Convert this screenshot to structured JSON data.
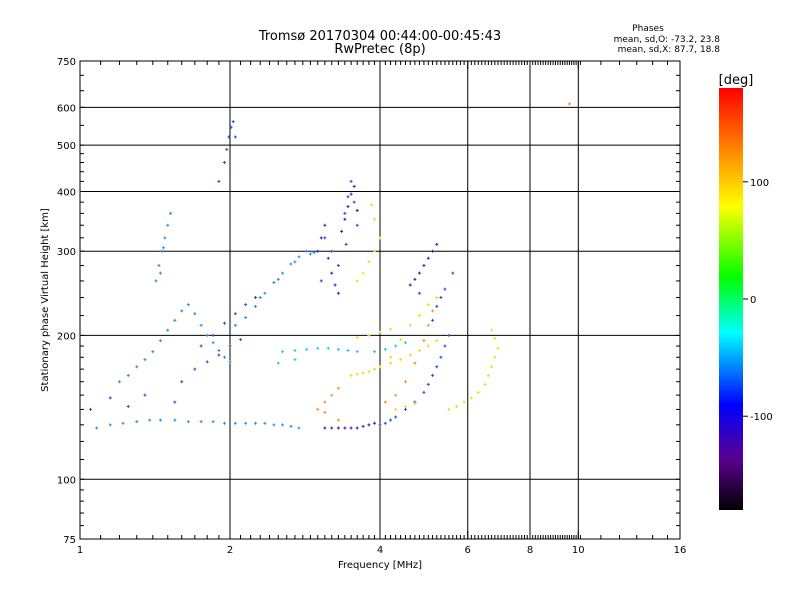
{
  "header": {
    "title": "Tromsø 20170304 00:44:00-00:45:43",
    "subtitle": "RwPretec (8p)",
    "phases_label": "Phases",
    "stat_o": "mean, sd,O: -73.2, 23.8",
    "stat_x": "mean, sd,X:  87.7, 18.8"
  },
  "chart_data": {
    "type": "scatter",
    "title": "Tromsø 20170304 00:44:00-00:45:43",
    "subtitle": "RwPretec (8p)",
    "xlabel": "Frequency [MHz]",
    "ylabel": "Stationary phase Virtual Height [km]",
    "x_scale": "log",
    "y_scale": "log",
    "xlim": [
      1,
      16
    ],
    "ylim": [
      75,
      750
    ],
    "x_ticks": [
      1,
      2,
      4,
      6,
      8,
      10,
      16
    ],
    "y_ticks": [
      75,
      100,
      200,
      300,
      400,
      500,
      600,
      750
    ],
    "grid": true,
    "colorbar": {
      "label": "[deg]",
      "ticks": [
        100,
        0,
        -100
      ],
      "range": [
        -180,
        180
      ],
      "colors": [
        "#000000",
        "#5a0090",
        "#0000ff",
        "#00ffff",
        "#00ff00",
        "#ffff00",
        "#ff8000",
        "#ff0000"
      ]
    },
    "series": [
      {
        "color": "#2a8fdc",
        "points": [
          [
            1.08,
            128
          ],
          [
            1.15,
            130
          ],
          [
            1.22,
            131
          ],
          [
            1.3,
            132
          ],
          [
            1.38,
            133
          ],
          [
            1.45,
            133
          ],
          [
            1.55,
            133
          ],
          [
            1.65,
            132
          ],
          [
            1.75,
            132
          ],
          [
            1.85,
            132
          ],
          [
            1.95,
            131
          ],
          [
            2.05,
            131
          ],
          [
            2.15,
            131
          ],
          [
            2.25,
            131
          ],
          [
            2.35,
            131
          ],
          [
            2.45,
            130
          ],
          [
            2.55,
            130
          ],
          [
            2.65,
            129
          ],
          [
            2.75,
            128
          ],
          [
            1.2,
            160
          ],
          [
            1.25,
            165
          ],
          [
            1.3,
            172
          ],
          [
            1.35,
            178
          ],
          [
            1.4,
            185
          ],
          [
            1.45,
            195
          ],
          [
            1.5,
            205
          ],
          [
            1.55,
            215
          ],
          [
            1.6,
            225
          ],
          [
            1.65,
            232
          ],
          [
            1.7,
            222
          ],
          [
            1.75,
            210
          ],
          [
            1.8,
            200
          ],
          [
            1.85,
            193
          ],
          [
            1.9,
            186
          ],
          [
            1.95,
            180
          ],
          [
            2.0,
            176
          ],
          [
            1.42,
            260
          ],
          [
            1.44,
            280
          ],
          [
            1.46,
            300
          ],
          [
            1.48,
            320
          ],
          [
            1.5,
            340
          ],
          [
            1.52,
            360
          ],
          [
            1.47,
            305
          ],
          [
            1.45,
            270
          ],
          [
            2.05,
            210
          ],
          [
            2.15,
            218
          ],
          [
            2.25,
            230
          ],
          [
            2.35,
            245
          ],
          [
            2.45,
            258
          ],
          [
            2.55,
            270
          ],
          [
            2.65,
            282
          ],
          [
            2.75,
            292
          ],
          [
            2.85,
            300
          ],
          [
            2.95,
            298
          ],
          [
            2.3,
            240
          ],
          [
            2.5,
            262
          ],
          [
            2.7,
            285
          ],
          [
            2.9,
            296
          ]
        ]
      },
      {
        "color": "#1e54d8",
        "points": [
          [
            1.05,
            140
          ],
          [
            1.15,
            148
          ],
          [
            1.25,
            142
          ],
          [
            1.35,
            150
          ],
          [
            1.55,
            145
          ],
          [
            1.6,
            160
          ],
          [
            1.7,
            170
          ],
          [
            1.8,
            176
          ],
          [
            1.9,
            182
          ],
          [
            2.0,
            190
          ],
          [
            2.1,
            196
          ],
          [
            1.75,
            190
          ],
          [
            1.85,
            200
          ],
          [
            1.95,
            212
          ],
          [
            2.05,
            222
          ],
          [
            2.15,
            232
          ],
          [
            2.25,
            240
          ],
          [
            1.95,
            460
          ],
          [
            1.97,
            490
          ],
          [
            1.99,
            520
          ],
          [
            2.01,
            545
          ],
          [
            2.03,
            560
          ],
          [
            2.05,
            520
          ],
          [
            1.9,
            420
          ],
          [
            3.4,
            360
          ],
          [
            3.45,
            390
          ],
          [
            3.5,
            420
          ],
          [
            3.55,
            380
          ],
          [
            3.6,
            340
          ],
          [
            3.42,
            310
          ],
          [
            3.3,
            280
          ],
          [
            3.2,
            300
          ],
          [
            3.1,
            320
          ],
          [
            3.05,
            260
          ],
          [
            4.0,
            130
          ],
          [
            4.1,
            131
          ],
          [
            4.2,
            133
          ],
          [
            4.3,
            135
          ],
          [
            4.5,
            140
          ],
          [
            4.7,
            145
          ],
          [
            4.9,
            152
          ],
          [
            5.0,
            158
          ],
          [
            5.1,
            165
          ],
          [
            5.2,
            172
          ],
          [
            5.3,
            180
          ],
          [
            5.4,
            190
          ],
          [
            5.5,
            200
          ],
          [
            5.2,
            230
          ],
          [
            5.3,
            240
          ],
          [
            5.4,
            250
          ],
          [
            5.6,
            270
          ],
          [
            5.1,
            215
          ],
          [
            4.8,
            245
          ]
        ]
      },
      {
        "color": "#3a20b0",
        "points": [
          [
            3.1,
            128
          ],
          [
            3.2,
            128
          ],
          [
            3.3,
            128
          ],
          [
            3.4,
            128
          ],
          [
            3.5,
            128
          ],
          [
            3.6,
            128
          ],
          [
            3.7,
            129
          ],
          [
            3.8,
            130
          ],
          [
            3.9,
            131
          ],
          [
            3.0,
            300
          ],
          [
            3.05,
            320
          ],
          [
            3.1,
            340
          ],
          [
            3.15,
            290
          ],
          [
            3.2,
            270
          ],
          [
            3.25,
            255
          ],
          [
            3.3,
            245
          ],
          [
            3.35,
            330
          ],
          [
            3.4,
            350
          ],
          [
            3.45,
            372
          ],
          [
            3.5,
            395
          ],
          [
            3.55,
            410
          ],
          [
            3.6,
            365
          ],
          [
            4.6,
            255
          ],
          [
            4.7,
            262
          ],
          [
            4.8,
            270
          ],
          [
            4.9,
            280
          ],
          [
            5.0,
            290
          ],
          [
            5.1,
            300
          ],
          [
            5.2,
            310
          ]
        ]
      },
      {
        "color": "#e6e010",
        "points": [
          [
            3.5,
            165
          ],
          [
            3.6,
            166
          ],
          [
            3.7,
            167
          ],
          [
            3.8,
            168
          ],
          [
            3.9,
            170
          ],
          [
            4.0,
            172
          ],
          [
            4.2,
            175
          ],
          [
            4.4,
            178
          ],
          [
            4.6,
            182
          ],
          [
            4.8,
            186
          ],
          [
            5.0,
            190
          ],
          [
            5.2,
            195
          ],
          [
            3.6,
            260
          ],
          [
            3.7,
            270
          ],
          [
            3.8,
            285
          ],
          [
            3.9,
            300
          ],
          [
            4.0,
            320
          ],
          [
            3.9,
            350
          ],
          [
            3.85,
            375
          ],
          [
            4.2,
            180
          ],
          [
            4.4,
            196
          ],
          [
            4.6,
            210
          ],
          [
            4.8,
            220
          ],
          [
            5.0,
            232
          ],
          [
            5.2,
            240
          ],
          [
            5.5,
            140
          ],
          [
            5.7,
            142
          ],
          [
            5.9,
            145
          ],
          [
            6.1,
            148
          ],
          [
            6.3,
            152
          ],
          [
            6.5,
            158
          ],
          [
            6.6,
            165
          ],
          [
            6.7,
            172
          ],
          [
            6.8,
            180
          ],
          [
            6.9,
            188
          ],
          [
            6.8,
            197
          ],
          [
            6.7,
            205
          ],
          [
            4.3,
            140
          ],
          [
            4.5,
            142
          ],
          [
            4.7,
            144
          ],
          [
            3.6,
            198
          ],
          [
            3.8,
            200
          ],
          [
            4.0,
            203
          ],
          [
            4.2,
            206
          ]
        ]
      },
      {
        "color": "#ff8c1a",
        "points": [
          [
            3.0,
            140
          ],
          [
            3.1,
            145
          ],
          [
            3.2,
            150
          ],
          [
            3.3,
            155
          ],
          [
            3.1,
            138
          ],
          [
            3.3,
            133
          ],
          [
            4.1,
            145
          ],
          [
            4.3,
            150
          ],
          [
            4.5,
            160
          ],
          [
            4.7,
            175
          ],
          [
            4.9,
            195
          ],
          [
            5.0,
            210
          ],
          [
            5.1,
            225
          ],
          [
            9.6,
            610
          ]
        ]
      },
      {
        "color": "#20c8e0",
        "points": [
          [
            2.55,
            185
          ],
          [
            2.7,
            186
          ],
          [
            2.85,
            187
          ],
          [
            3.0,
            188
          ],
          [
            3.15,
            188
          ],
          [
            3.3,
            187
          ],
          [
            3.45,
            186
          ],
          [
            3.6,
            185
          ],
          [
            2.5,
            175
          ],
          [
            2.7,
            178
          ],
          [
            3.9,
            185
          ],
          [
            4.1,
            187
          ],
          [
            4.3,
            190
          ],
          [
            4.5,
            193
          ]
        ]
      }
    ]
  }
}
